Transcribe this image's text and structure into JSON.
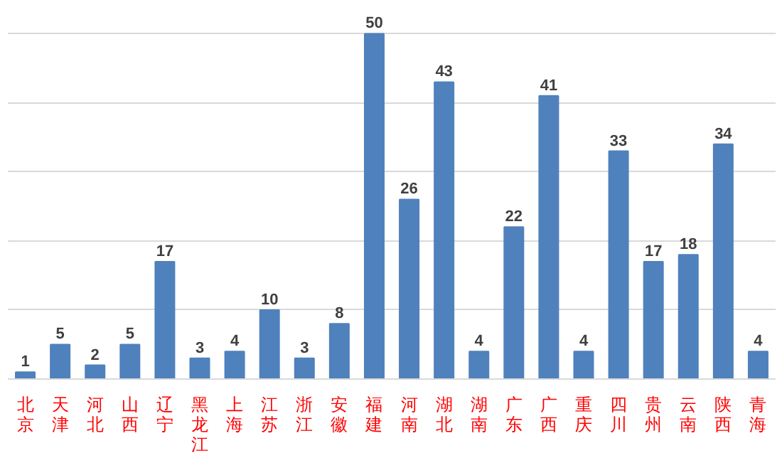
{
  "chart_data": {
    "type": "bar",
    "categories": [
      "北京",
      "天津",
      "河北",
      "山西",
      "辽宁",
      "黑龙江",
      "上海",
      "江苏",
      "浙江",
      "安徽",
      "福建",
      "河南",
      "湖北",
      "湖南",
      "广东",
      "广西",
      "重庆",
      "四川",
      "贵州",
      "云南",
      "陕西",
      "青海"
    ],
    "values": [
      1,
      5,
      2,
      5,
      17,
      3,
      4,
      10,
      3,
      8,
      50,
      26,
      43,
      4,
      22,
      41,
      4,
      33,
      17,
      18,
      34,
      4
    ],
    "color": "#4f81bd",
    "data_labels": true,
    "grid": "y",
    "tick_labels": "x",
    "yticks": [
      {
        "value": 0,
        "label": null
      },
      {
        "value": 10,
        "label": null
      },
      {
        "value": 20,
        "label": null
      },
      {
        "value": 30,
        "label": null
      },
      {
        "value": 40,
        "label": null
      },
      {
        "value": 50,
        "label": null
      }
    ]
  }
}
